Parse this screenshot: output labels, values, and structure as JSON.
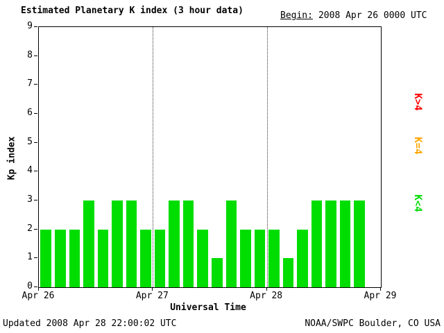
{
  "header": {
    "title": "Estimated Planetary K index (3 hour data)",
    "begin_label": "Begin:",
    "begin_value": "2008 Apr 26 0000 UTC"
  },
  "footer": {
    "updated": "Updated 2008 Apr 28 22:00:02 UTC",
    "source": "NOAA/SWPC Boulder, CO USA"
  },
  "legend": [
    {
      "key": "k-gt-4",
      "label": "K>4",
      "color": "#ff0000"
    },
    {
      "key": "k-eq-4",
      "label": "K=4",
      "color": "#ffa500"
    },
    {
      "key": "k-lt-4",
      "label": "K<4",
      "color": "#00dd00"
    }
  ],
  "chart_data": {
    "type": "bar",
    "title": "Estimated Planetary K index (3 hour data)",
    "xlabel": "Universal Time",
    "ylabel": "Kp index",
    "ylim": [
      0,
      9
    ],
    "yticks": [
      0,
      1,
      2,
      3,
      4,
      5,
      6,
      7,
      8,
      9
    ],
    "xticklabels": [
      "Apr 26",
      "Apr 27",
      "Apr 28",
      "Apr 29"
    ],
    "days": 3,
    "bars_per_day": 8,
    "interval_hours": 3,
    "values": [
      2,
      2,
      2,
      3,
      2,
      3,
      3,
      2,
      2,
      3,
      3,
      2,
      1,
      3,
      2,
      2,
      2,
      1,
      2,
      3,
      3,
      3,
      3
    ],
    "colors": {
      "lt4": "#00dd00",
      "eq4": "#ffa500",
      "gt4": "#ff0000"
    },
    "grid": "dotted vertical lines at day boundaries",
    "legend_position": "right"
  }
}
